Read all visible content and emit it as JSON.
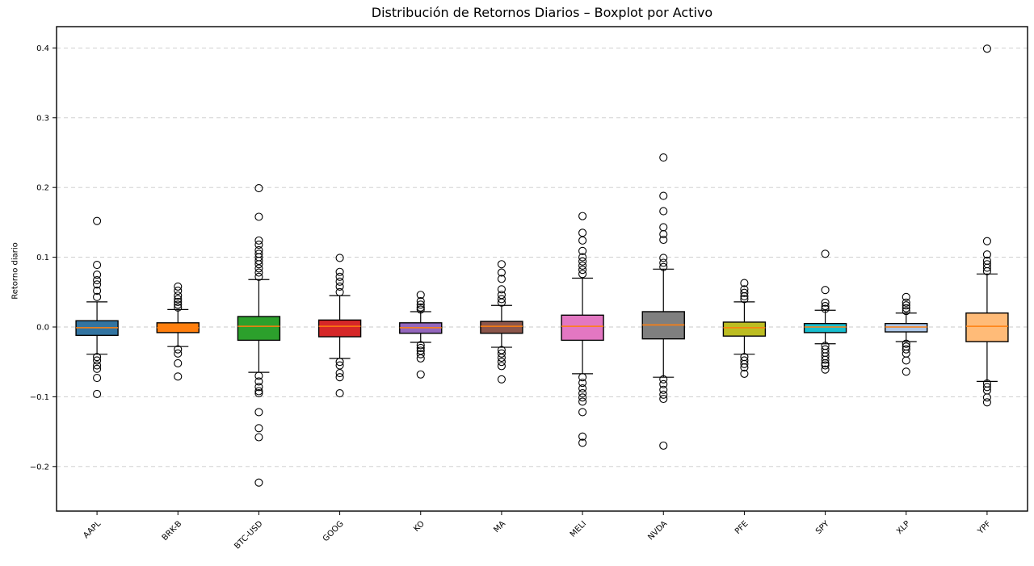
{
  "figure": {
    "title": "Distribución de Retornos Diarios – Boxplot por Activo",
    "ylabel": "Retorno diario"
  },
  "chart_data": {
    "type": "boxplot",
    "title": "Distribución de Retornos Diarios – Boxplot por Activo",
    "xlabel": "",
    "ylabel": "Retorno diario",
    "ylim": [
      -0.264,
      0.431
    ],
    "yticks": [
      0.4,
      0.3,
      0.2,
      0.1,
      0.0,
      -0.1,
      -0.2
    ],
    "grid": "horizontal dashed",
    "legend": "none",
    "median_line_color": "#ff7f0e",
    "box_edge_color": "#000000",
    "categories": [
      "AAPL",
      "BRK-B",
      "BTC-USD",
      "GOOG",
      "KO",
      "MA",
      "MELI",
      "NVDA",
      "PFE",
      "SPY",
      "XLP",
      "YPF"
    ],
    "series": [
      {
        "label": "AAPL",
        "color": "#3274a1",
        "whisker_low": -0.039,
        "q1": -0.012,
        "median": -0.001,
        "q3": 0.009,
        "whisker_high": 0.036,
        "outliers": [
          0.152,
          0.089,
          0.075,
          0.067,
          0.061,
          0.052,
          0.043,
          -0.043,
          -0.048,
          -0.055,
          -0.06,
          -0.073,
          -0.096
        ]
      },
      {
        "label": "BRK-B",
        "color": "#ff7f0e",
        "whisker_low": -0.028,
        "q1": -0.008,
        "median": -0.001,
        "q3": 0.006,
        "whisker_high": 0.025,
        "outliers": [
          0.058,
          0.052,
          0.045,
          0.04,
          0.036,
          0.032,
          0.028,
          -0.032,
          -0.038,
          -0.052,
          -0.071
        ]
      },
      {
        "label": "BTC-USD",
        "color": "#2ca02c",
        "whisker_low": -0.065,
        "q1": -0.019,
        "median": 0.001,
        "q3": 0.015,
        "whisker_high": 0.068,
        "outliers": [
          0.199,
          0.158,
          0.124,
          0.118,
          0.11,
          0.105,
          0.1,
          0.095,
          0.09,
          0.084,
          0.078,
          0.072,
          -0.07,
          -0.078,
          -0.086,
          -0.092,
          -0.095,
          -0.122,
          -0.145,
          -0.158,
          -0.223
        ]
      },
      {
        "label": "GOOG",
        "color": "#d62728",
        "whisker_low": -0.045,
        "q1": -0.014,
        "median": 0.001,
        "q3": 0.01,
        "whisker_high": 0.045,
        "outliers": [
          0.099,
          0.079,
          0.072,
          0.065,
          0.058,
          0.05,
          -0.05,
          -0.055,
          -0.066,
          -0.072,
          -0.095
        ]
      },
      {
        "label": "KO",
        "color": "#9467bd",
        "whisker_low": -0.022,
        "q1": -0.009,
        "median": -0.001,
        "q3": 0.006,
        "whisker_high": 0.022,
        "outliers": [
          0.046,
          0.037,
          0.032,
          0.028,
          0.025,
          -0.026,
          -0.03,
          -0.034,
          -0.039,
          -0.045,
          -0.068
        ]
      },
      {
        "label": "MA",
        "color": "#8c564b",
        "whisker_low": -0.029,
        "q1": -0.009,
        "median": 0.001,
        "q3": 0.008,
        "whisker_high": 0.031,
        "outliers": [
          0.09,
          0.078,
          0.069,
          0.054,
          0.046,
          0.04,
          0.035,
          -0.033,
          -0.038,
          -0.044,
          -0.05,
          -0.056,
          -0.075
        ]
      },
      {
        "label": "MELI",
        "color": "#e377c2",
        "whisker_low": -0.067,
        "q1": -0.019,
        "median": 0.001,
        "q3": 0.017,
        "whisker_high": 0.07,
        "outliers": [
          0.159,
          0.135,
          0.124,
          0.109,
          0.1,
          0.094,
          0.088,
          0.082,
          0.076,
          -0.072,
          -0.08,
          -0.088,
          -0.095,
          -0.101,
          -0.107,
          -0.122,
          -0.157,
          -0.166
        ]
      },
      {
        "label": "NVDA",
        "color": "#7f7f7f",
        "whisker_low": -0.072,
        "q1": -0.017,
        "median": 0.003,
        "q3": 0.022,
        "whisker_high": 0.083,
        "outliers": [
          0.243,
          0.188,
          0.166,
          0.143,
          0.133,
          0.125,
          0.099,
          0.092,
          0.086,
          -0.075,
          -0.082,
          -0.09,
          -0.097,
          -0.103,
          -0.17
        ]
      },
      {
        "label": "PFE",
        "color": "#bcbd22",
        "whisker_low": -0.039,
        "q1": -0.013,
        "median": -0.001,
        "q3": 0.007,
        "whisker_high": 0.036,
        "outliers": [
          0.063,
          0.054,
          0.049,
          0.044,
          0.04,
          -0.043,
          -0.048,
          -0.053,
          -0.058,
          -0.067
        ]
      },
      {
        "label": "SPY",
        "color": "#17becf",
        "whisker_low": -0.024,
        "q1": -0.008,
        "median": 0.0,
        "q3": 0.005,
        "whisker_high": 0.024,
        "outliers": [
          0.105,
          0.053,
          0.035,
          0.03,
          0.026,
          -0.027,
          -0.032,
          -0.037,
          -0.042,
          -0.047,
          -0.052,
          -0.055,
          -0.061
        ]
      },
      {
        "label": "XLP",
        "color": "#aec7e8",
        "whisker_low": -0.021,
        "q1": -0.007,
        "median": 0.0,
        "q3": 0.005,
        "whisker_high": 0.02,
        "outliers": [
          0.043,
          0.035,
          0.031,
          0.027,
          0.023,
          -0.024,
          -0.028,
          -0.032,
          -0.038,
          -0.048,
          -0.064
        ]
      },
      {
        "label": "YPF",
        "color": "#ffbb78",
        "whisker_low": -0.078,
        "q1": -0.021,
        "median": 0.001,
        "q3": 0.02,
        "whisker_high": 0.076,
        "outliers": [
          0.399,
          0.123,
          0.104,
          0.095,
          0.09,
          0.085,
          0.08,
          -0.081,
          -0.086,
          -0.091,
          -0.101,
          -0.108
        ]
      }
    ]
  }
}
